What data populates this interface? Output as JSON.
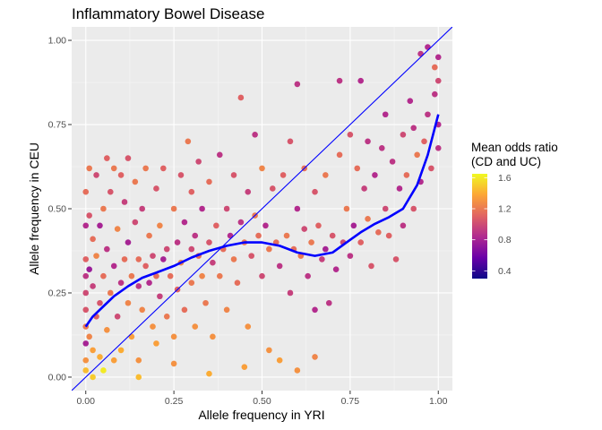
{
  "chart_data": {
    "type": "scatter",
    "title": "Inflammatory Bowel Disease",
    "xlabel": "Allele frequency in YRI",
    "ylabel": "Allele frequency in CEU",
    "xlim": [
      -0.04,
      1.04
    ],
    "ylim": [
      -0.04,
      1.04
    ],
    "x_ticks": [
      0,
      0.25,
      0.5,
      0.75,
      1
    ],
    "x_tick_labels": [
      "0.00",
      "0.25",
      "0.50",
      "0.75",
      "1.00"
    ],
    "y_ticks": [
      0,
      0.25,
      0.5,
      0.75,
      1
    ],
    "y_tick_labels": [
      "0.00",
      "0.25",
      "0.50",
      "0.75",
      "1.00"
    ],
    "grid": true,
    "legend": {
      "title_lines": [
        "Mean odds ratio",
        "(CD and UC)"
      ],
      "placement": "right",
      "range": [
        0.3,
        1.65
      ],
      "breaks": [
        0.4,
        0.8,
        1.2,
        1.6
      ],
      "break_labels": [
        "0.4",
        "0.8",
        "1.2",
        "1.6"
      ],
      "palette": [
        "#0d0887",
        "#6a00a8",
        "#b12a90",
        "#e16462",
        "#fca636",
        "#f0f921"
      ]
    },
    "reference_line": {
      "intercept": 0,
      "slope": 1,
      "color": "#0000ff"
    },
    "smooth": {
      "color": "#0000ff",
      "x": [
        0.0,
        0.02,
        0.05,
        0.08,
        0.12,
        0.16,
        0.2,
        0.25,
        0.3,
        0.35,
        0.4,
        0.45,
        0.5,
        0.55,
        0.6,
        0.65,
        0.7,
        0.74,
        0.78,
        0.82,
        0.86,
        0.9,
        0.94,
        0.97,
        1.0
      ],
      "y": [
        0.15,
        0.18,
        0.21,
        0.24,
        0.27,
        0.295,
        0.31,
        0.33,
        0.355,
        0.375,
        0.39,
        0.4,
        0.4,
        0.39,
        0.37,
        0.36,
        0.37,
        0.4,
        0.43,
        0.455,
        0.475,
        0.5,
        0.57,
        0.66,
        0.78
      ]
    },
    "series": [
      {
        "values": [
          [
            0.0,
            0.1,
            0.8
          ],
          [
            0.0,
            0.2,
            1.05
          ],
          [
            0.0,
            0.3,
            0.9
          ],
          [
            0.0,
            0.15,
            1.2
          ],
          [
            0.0,
            0.25,
            1.0
          ],
          [
            0.0,
            0.05,
            1.3
          ],
          [
            0.0,
            0.35,
            1.1
          ],
          [
            0.0,
            0.45,
            0.85
          ],
          [
            0.0,
            0.55,
            1.15
          ],
          [
            0.0,
            0.02,
            1.45
          ],
          [
            0.01,
            0.12,
            1.25
          ],
          [
            0.01,
            0.32,
            0.75
          ],
          [
            0.01,
            0.48,
            1.05
          ],
          [
            0.01,
            0.62,
            1.2
          ],
          [
            0.02,
            0.08,
            1.35
          ],
          [
            0.02,
            0.27,
            0.95
          ],
          [
            0.02,
            0.41,
            1.15
          ],
          [
            0.02,
            0.0,
            1.5
          ],
          [
            0.03,
            0.18,
            1.1
          ],
          [
            0.03,
            0.36,
            1.25
          ],
          [
            0.03,
            0.6,
            1.0
          ],
          [
            0.04,
            0.06,
            1.4
          ],
          [
            0.04,
            0.22,
            1.05
          ],
          [
            0.04,
            0.45,
            0.8
          ],
          [
            0.05,
            0.02,
            1.6
          ],
          [
            0.05,
            0.3,
            1.15
          ],
          [
            0.05,
            0.5,
            1.2
          ],
          [
            0.06,
            0.14,
            1.3
          ],
          [
            0.06,
            0.38,
            0.9
          ],
          [
            0.06,
            0.65,
            1.1
          ],
          [
            0.07,
            0.25,
            1.2
          ],
          [
            0.07,
            0.55,
            1.05
          ],
          [
            0.08,
            0.05,
            1.35
          ],
          [
            0.08,
            0.33,
            0.85
          ],
          [
            0.08,
            0.62,
            1.2
          ],
          [
            0.09,
            0.18,
            1.0
          ],
          [
            0.09,
            0.44,
            1.25
          ],
          [
            0.1,
            0.28,
            0.9
          ],
          [
            0.1,
            0.6,
            1.1
          ],
          [
            0.1,
            0.08,
            1.4
          ],
          [
            0.11,
            0.35,
            1.15
          ],
          [
            0.11,
            0.52,
            0.95
          ],
          [
            0.12,
            0.22,
            1.25
          ],
          [
            0.12,
            0.65,
            1.05
          ],
          [
            0.12,
            0.4,
            0.8
          ],
          [
            0.13,
            0.3,
            1.2
          ],
          [
            0.13,
            0.12,
            1.35
          ],
          [
            0.14,
            0.46,
            1.0
          ],
          [
            0.14,
            0.58,
            1.2
          ],
          [
            0.15,
            0.27,
            0.9
          ],
          [
            0.15,
            0.35,
            1.15
          ],
          [
            0.15,
            0.05,
            1.3
          ],
          [
            0.16,
            0.2,
            1.25
          ],
          [
            0.16,
            0.5,
            0.95
          ],
          [
            0.17,
            0.33,
            1.1
          ],
          [
            0.17,
            0.62,
            1.2
          ],
          [
            0.18,
            0.28,
            0.85
          ],
          [
            0.18,
            0.42,
            1.2
          ],
          [
            0.19,
            0.15,
            1.3
          ],
          [
            0.19,
            0.36,
            1.0
          ],
          [
            0.2,
            0.3,
            1.15
          ],
          [
            0.2,
            0.56,
            1.05
          ],
          [
            0.2,
            0.1,
            1.35
          ],
          [
            0.21,
            0.24,
            0.95
          ],
          [
            0.21,
            0.45,
            1.25
          ],
          [
            0.22,
            0.35,
            0.8
          ],
          [
            0.22,
            0.62,
            1.1
          ],
          [
            0.23,
            0.18,
            1.2
          ],
          [
            0.23,
            0.38,
            1.0
          ],
          [
            0.24,
            0.3,
            1.15
          ],
          [
            0.25,
            0.5,
            1.2
          ],
          [
            0.25,
            0.12,
            1.3
          ],
          [
            0.26,
            0.4,
            0.9
          ],
          [
            0.26,
            0.26,
            1.1
          ],
          [
            0.27,
            0.6,
            1.05
          ],
          [
            0.27,
            0.34,
            1.25
          ],
          [
            0.28,
            0.2,
            1.15
          ],
          [
            0.28,
            0.46,
            0.85
          ],
          [
            0.29,
            0.7,
            1.2
          ],
          [
            0.3,
            0.38,
            1.0
          ],
          [
            0.3,
            0.28,
            1.2
          ],
          [
            0.3,
            0.55,
            1.1
          ],
          [
            0.31,
            0.42,
            0.9
          ],
          [
            0.31,
            0.15,
            1.3
          ],
          [
            0.32,
            0.36,
            1.15
          ],
          [
            0.32,
            0.64,
            1.0
          ],
          [
            0.33,
            0.3,
            1.25
          ],
          [
            0.33,
            0.5,
            0.85
          ],
          [
            0.34,
            0.22,
            1.2
          ],
          [
            0.35,
            0.4,
            1.05
          ],
          [
            0.35,
            0.58,
            1.15
          ],
          [
            0.36,
            0.34,
            0.95
          ],
          [
            0.36,
            0.12,
            1.3
          ],
          [
            0.37,
            0.45,
            1.1
          ],
          [
            0.38,
            0.3,
            1.2
          ],
          [
            0.38,
            0.66,
            0.9
          ],
          [
            0.39,
            0.38,
            1.15
          ],
          [
            0.4,
            0.5,
            1.0
          ],
          [
            0.4,
            0.2,
            1.25
          ],
          [
            0.41,
            0.42,
            0.85
          ],
          [
            0.42,
            0.35,
            1.2
          ],
          [
            0.42,
            0.6,
            1.05
          ],
          [
            0.43,
            0.28,
            1.15
          ],
          [
            0.44,
            0.46,
            0.9
          ],
          [
            0.44,
            0.83,
            1.1
          ],
          [
            0.45,
            0.4,
            1.2
          ],
          [
            0.46,
            0.55,
            0.95
          ],
          [
            0.46,
            0.15,
            1.3
          ],
          [
            0.47,
            0.36,
            1.05
          ],
          [
            0.48,
            0.48,
            1.2
          ],
          [
            0.48,
            0.72,
            0.9
          ],
          [
            0.49,
            0.42,
            1.15
          ],
          [
            0.5,
            0.3,
            1.0
          ],
          [
            0.5,
            0.62,
            1.25
          ],
          [
            0.51,
            0.45,
            0.85
          ],
          [
            0.52,
            0.38,
            1.2
          ],
          [
            0.52,
            0.08,
            1.3
          ],
          [
            0.53,
            0.56,
            1.05
          ],
          [
            0.54,
            0.4,
            1.15
          ],
          [
            0.55,
            0.33,
            0.9
          ],
          [
            0.55,
            0.05,
            1.35
          ],
          [
            0.56,
            0.6,
            1.1
          ],
          [
            0.57,
            0.42,
            1.2
          ],
          [
            0.58,
            0.25,
            0.95
          ],
          [
            0.58,
            0.7,
            1.05
          ],
          [
            0.59,
            0.38,
            1.15
          ],
          [
            0.6,
            0.5,
            0.85
          ],
          [
            0.6,
            0.87,
            0.9
          ],
          [
            0.61,
            0.36,
            1.2
          ],
          [
            0.62,
            0.44,
            1.0
          ],
          [
            0.62,
            0.62,
            1.15
          ],
          [
            0.63,
            0.3,
            0.9
          ],
          [
            0.64,
            0.4,
            1.2
          ],
          [
            0.65,
            0.55,
            1.05
          ],
          [
            0.65,
            0.2,
            0.85
          ],
          [
            0.66,
            0.45,
            1.1
          ],
          [
            0.67,
            0.35,
            0.95
          ],
          [
            0.68,
            0.6,
            1.2
          ],
          [
            0.68,
            0.38,
            0.8
          ],
          [
            0.69,
            0.22,
            0.9
          ],
          [
            0.7,
            0.42,
            1.05
          ],
          [
            0.71,
            0.32,
            0.85
          ],
          [
            0.72,
            0.66,
            1.15
          ],
          [
            0.72,
            0.88,
            0.9
          ],
          [
            0.73,
            0.4,
            1.0
          ],
          [
            0.74,
            0.5,
            1.2
          ],
          [
            0.75,
            0.36,
            0.9
          ],
          [
            0.75,
            0.72,
            1.05
          ],
          [
            0.76,
            0.45,
            0.8
          ],
          [
            0.77,
            0.62,
            1.15
          ],
          [
            0.78,
            0.88,
            0.85
          ],
          [
            0.78,
            0.4,
            1.1
          ],
          [
            0.79,
            0.56,
            0.95
          ],
          [
            0.8,
            0.47,
            1.2
          ],
          [
            0.8,
            0.7,
            0.9
          ],
          [
            0.81,
            0.33,
            1.05
          ],
          [
            0.82,
            0.6,
            0.85
          ],
          [
            0.83,
            0.43,
            1.15
          ],
          [
            0.84,
            0.68,
            0.9
          ],
          [
            0.85,
            0.5,
            1.0
          ],
          [
            0.85,
            0.78,
            0.85
          ],
          [
            0.86,
            0.42,
            1.1
          ],
          [
            0.87,
            0.64,
            0.9
          ],
          [
            0.88,
            0.35,
            1.05
          ],
          [
            0.89,
            0.56,
            0.85
          ],
          [
            0.9,
            0.72,
            1.0
          ],
          [
            0.9,
            0.45,
            0.9
          ],
          [
            0.91,
            0.6,
            1.15
          ],
          [
            0.92,
            0.82,
            0.85
          ],
          [
            0.93,
            0.5,
            1.05
          ],
          [
            0.93,
            0.74,
            0.9
          ],
          [
            0.94,
            0.66,
            1.2
          ],
          [
            0.95,
            0.96,
            0.9
          ],
          [
            0.95,
            0.58,
            0.85
          ],
          [
            0.96,
            0.7,
            1.1
          ],
          [
            0.97,
            0.78,
            0.9
          ],
          [
            0.97,
            0.98,
            0.85
          ],
          [
            0.98,
            0.62,
            1.05
          ],
          [
            0.99,
            0.84,
            0.9
          ],
          [
            0.99,
            0.92,
            1.15
          ],
          [
            1.0,
            0.75,
            0.85
          ],
          [
            1.0,
            0.88,
            1.0
          ],
          [
            1.0,
            0.68,
            0.9
          ],
          [
            1.0,
            0.95,
            0.85
          ],
          [
            0.6,
            0.02,
            1.3
          ],
          [
            0.65,
            0.06,
            1.25
          ],
          [
            0.45,
            0.03,
            1.35
          ],
          [
            0.35,
            0.01,
            1.4
          ],
          [
            0.25,
            0.04,
            1.3
          ],
          [
            0.15,
            0.0,
            1.45
          ]
        ]
      }
    ]
  }
}
